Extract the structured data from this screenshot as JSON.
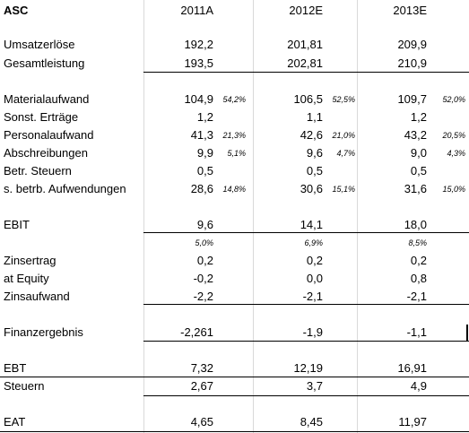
{
  "company": "ASC",
  "columns": [
    "2011A",
    "2012E",
    "2013E"
  ],
  "rows": [
    {
      "label": "Umsatzerlöse",
      "values": [
        "192,2",
        "201,81",
        "209,9"
      ],
      "pct": [
        "",
        "",
        ""
      ]
    },
    {
      "label": "Gesamtleistung",
      "values": [
        "193,5",
        "202,81",
        "210,9"
      ],
      "pct": [
        "",
        "",
        ""
      ]
    },
    {
      "label": "Materialaufwand",
      "values": [
        "104,9",
        "106,5",
        "109,7"
      ],
      "pct": [
        "54,2%",
        "52,5%",
        "52,0%"
      ]
    },
    {
      "label": "Sonst. Erträge",
      "values": [
        "1,2",
        "1,1",
        "1,2"
      ],
      "pct": [
        "",
        "",
        ""
      ]
    },
    {
      "label": "Personalaufwand",
      "values": [
        "41,3",
        "42,6",
        "43,2"
      ],
      "pct": [
        "21,3%",
        "21,0%",
        "20,5%"
      ]
    },
    {
      "label": "Abschreibungen",
      "values": [
        "9,9",
        "9,6",
        "9,0"
      ],
      "pct": [
        "5,1%",
        "4,7%",
        "4,3%"
      ]
    },
    {
      "label": "Betr. Steuern",
      "values": [
        "0,5",
        "0,5",
        "0,5"
      ],
      "pct": [
        "",
        "",
        ""
      ]
    },
    {
      "label": "s. betrb. Aufwendungen",
      "values": [
        "28,6",
        "30,6",
        "31,6"
      ],
      "pct": [
        "14,8%",
        "15,1%",
        "15,0%"
      ]
    },
    {
      "label": "EBIT",
      "values": [
        "9,6",
        "14,1",
        "18,0"
      ],
      "pct": [
        "",
        "",
        ""
      ]
    },
    {
      "label": "",
      "values": [
        "",
        "",
        ""
      ],
      "pct": [
        "5,0%",
        "6,9%",
        "8,5%"
      ]
    },
    {
      "label": "Zinsertrag",
      "values": [
        "0,2",
        "0,2",
        "0,2"
      ],
      "pct": [
        "",
        "",
        ""
      ]
    },
    {
      "label": "at Equity",
      "values": [
        "-0,2",
        "0,0",
        "0,8"
      ],
      "pct": [
        "",
        "",
        ""
      ]
    },
    {
      "label": "Zinsaufwand",
      "values": [
        "-2,2",
        "-2,1",
        "-2,1"
      ],
      "pct": [
        "",
        "",
        ""
      ]
    },
    {
      "label": "Finanzergebnis",
      "values": [
        "-2,261",
        "-1,9",
        "-1,1"
      ],
      "pct": [
        "",
        "",
        ""
      ]
    },
    {
      "label": "EBT",
      "values": [
        "7,32",
        "12,19",
        "16,91"
      ],
      "pct": [
        "",
        "",
        ""
      ]
    },
    {
      "label": "Steuern",
      "values": [
        "2,67",
        "3,7",
        "4,9"
      ],
      "pct": [
        "",
        "",
        ""
      ]
    },
    {
      "label": "EAT",
      "values": [
        "4,65",
        "8,45",
        "11,97"
      ],
      "pct": [
        "",
        "",
        ""
      ]
    }
  ]
}
